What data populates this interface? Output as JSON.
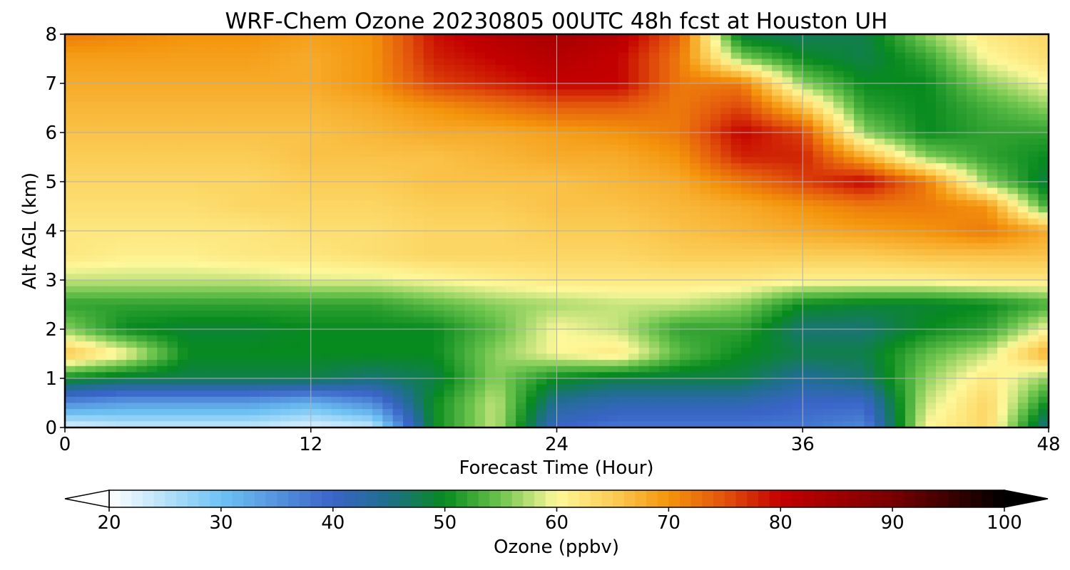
{
  "chart_data": {
    "type": "heatmap",
    "title": "WRF-Chem Ozone  20230805 00UTC 48h fcst at Houston UH",
    "xlabel": "Forecast Time (Hour)",
    "ylabel": "Alt AGL (km)",
    "xlim": [
      0,
      48
    ],
    "ylim": [
      0,
      8
    ],
    "x_ticks": [
      "0",
      "12",
      "24",
      "36",
      "48"
    ],
    "y_ticks": [
      "0",
      "1",
      "2",
      "3",
      "4",
      "5",
      "6",
      "7",
      "8"
    ],
    "grid": true,
    "x": [
      0,
      3,
      6,
      9,
      12,
      15,
      18,
      21,
      24,
      27,
      30,
      33,
      36,
      39,
      42,
      45,
      48
    ],
    "y": [
      0,
      0.5,
      1,
      1.5,
      2,
      2.5,
      3,
      3.5,
      4,
      4.5,
      5,
      5.5,
      6,
      6.5,
      7,
      7.5,
      8
    ],
    "z": [
      [
        22,
        24,
        24,
        24,
        22,
        24,
        50,
        58,
        40,
        38,
        38,
        38,
        38,
        36,
        60,
        64,
        44
      ],
      [
        36,
        34,
        34,
        34,
        32,
        36,
        50,
        58,
        44,
        42,
        42,
        42,
        40,
        40,
        58,
        64,
        50
      ],
      [
        50,
        48,
        48,
        48,
        48,
        46,
        48,
        56,
        50,
        48,
        48,
        48,
        44,
        46,
        56,
        62,
        56
      ],
      [
        66,
        60,
        50,
        50,
        50,
        50,
        50,
        56,
        60,
        62,
        54,
        50,
        48,
        48,
        54,
        58,
        68
      ],
      [
        56,
        50,
        49,
        49,
        50,
        50,
        50,
        54,
        60,
        58,
        52,
        52,
        46,
        46,
        50,
        52,
        60
      ],
      [
        52,
        52,
        52,
        52,
        52,
        52,
        54,
        56,
        57,
        58,
        58,
        56,
        50,
        49,
        49,
        50,
        53
      ],
      [
        58,
        58,
        58,
        58,
        59,
        59,
        60,
        61,
        62,
        62,
        62,
        62,
        61,
        61,
        61,
        62,
        62
      ],
      [
        62,
        61,
        61,
        62,
        62,
        63,
        64,
        64,
        64,
        64,
        65,
        65,
        65,
        65,
        66,
        66,
        66
      ],
      [
        62,
        62,
        62,
        62,
        63,
        63,
        64,
        64,
        65,
        65,
        66,
        67,
        68,
        69,
        70,
        72,
        68
      ],
      [
        63,
        63,
        63,
        64,
        64,
        64,
        65,
        65,
        66,
        66,
        67,
        68,
        70,
        72,
        72,
        70,
        52
      ],
      [
        64,
        64,
        64,
        64,
        65,
        65,
        66,
        66,
        66,
        67,
        68,
        72,
        76,
        80,
        72,
        56,
        48
      ],
      [
        65,
        65,
        65,
        65,
        66,
        66,
        66,
        67,
        68,
        68,
        70,
        78,
        78,
        68,
        56,
        52,
        50
      ],
      [
        66,
        66,
        66,
        66,
        66,
        67,
        68,
        68,
        69,
        70,
        72,
        80,
        76,
        56,
        50,
        52,
        52
      ],
      [
        67,
        67,
        67,
        67,
        67,
        68,
        70,
        72,
        74,
        74,
        72,
        76,
        66,
        52,
        50,
        53,
        56
      ],
      [
        68,
        68,
        68,
        68,
        68,
        70,
        76,
        78,
        80,
        80,
        72,
        72,
        56,
        50,
        50,
        56,
        60
      ],
      [
        69,
        69,
        69,
        69,
        68,
        70,
        78,
        80,
        82,
        80,
        72,
        56,
        50,
        48,
        52,
        60,
        63
      ],
      [
        72,
        71,
        70,
        70,
        69,
        70,
        79,
        82,
        84,
        82,
        74,
        48,
        47,
        48,
        56,
        62,
        64
      ]
    ],
    "colorbar": {
      "label": "Ozone  (ppbv)",
      "min": 20,
      "max": 100,
      "extend": "both",
      "ticks": [
        "20",
        "30",
        "40",
        "50",
        "60",
        "70",
        "80",
        "90",
        "100"
      ],
      "colorscale": [
        [
          20,
          "#ffffff"
        ],
        [
          30,
          "#6ec3f3"
        ],
        [
          40,
          "#3a64c8"
        ],
        [
          45,
          "#1e6f8a"
        ],
        [
          50,
          "#078a1e"
        ],
        [
          55,
          "#6ec54e"
        ],
        [
          60,
          "#fef89a"
        ],
        [
          65,
          "#fbcd56"
        ],
        [
          70,
          "#f4940c"
        ],
        [
          75,
          "#e2530c"
        ],
        [
          80,
          "#c40000"
        ],
        [
          90,
          "#780000"
        ],
        [
          100,
          "#000000"
        ]
      ]
    }
  }
}
